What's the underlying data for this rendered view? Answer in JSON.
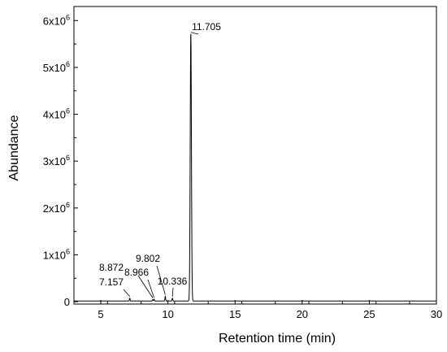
{
  "chart_data": {
    "type": "line",
    "xlabel": "Retention time (min)",
    "ylabel": "Abundance",
    "xlim": [
      3,
      30
    ],
    "ylim": [
      -50000,
      6300000
    ],
    "x_ticks": [
      {
        "value": 5,
        "label": "5"
      },
      {
        "value": 10,
        "label": "10"
      },
      {
        "value": 15,
        "label": "15"
      },
      {
        "value": 20,
        "label": "20"
      },
      {
        "value": 25,
        "label": "25"
      },
      {
        "value": 30,
        "label": "30"
      }
    ],
    "y_ticks": [
      {
        "value": 0,
        "mantissa": "0",
        "exponent": ""
      },
      {
        "value": 1000000,
        "mantissa": "1x10",
        "exponent": "6"
      },
      {
        "value": 2000000,
        "mantissa": "2x10",
        "exponent": "6"
      },
      {
        "value": 3000000,
        "mantissa": "3x10",
        "exponent": "6"
      },
      {
        "value": 4000000,
        "mantissa": "4x10",
        "exponent": "6"
      },
      {
        "value": 5000000,
        "mantissa": "5x10",
        "exponent": "6"
      },
      {
        "value": 6000000,
        "mantissa": "6x10",
        "exponent": "6"
      }
    ],
    "baseline": 15000,
    "peaks": [
      {
        "rt": 7.157,
        "label": "7.157",
        "height": 60000
      },
      {
        "rt": 8.872,
        "label": "8.872",
        "height": 30000
      },
      {
        "rt": 8.966,
        "label": "8.966",
        "height": 35000
      },
      {
        "rt": 9.802,
        "label": "9.802",
        "height": 100000
      },
      {
        "rt": 10.336,
        "label": "10.336",
        "height": 60000
      },
      {
        "rt": 11.705,
        "label": "11.705",
        "height": 5700000
      }
    ],
    "grid": false,
    "legend": "none"
  }
}
